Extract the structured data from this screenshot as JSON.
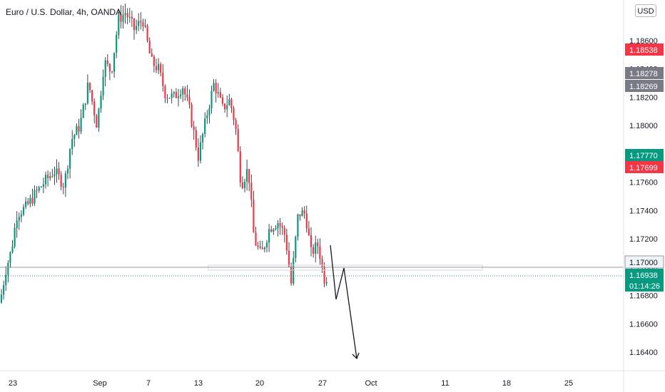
{
  "chart_data": {
    "type": "candlestick",
    "title": "Euro / U.S. Dollar, 4h, OANDA",
    "currency_button": "USD",
    "y_ticks": [
      "1.18600",
      "1.18400",
      "1.18200",
      "1.18000",
      "1.17800",
      "1.17600",
      "1.17400",
      "1.17200",
      "1.17000",
      "1.16800",
      "1.16600",
      "1.16400"
    ],
    "y_tick_values": [
      1.186,
      1.184,
      1.182,
      1.18,
      1.178,
      1.176,
      1.174,
      1.172,
      1.17,
      1.168,
      1.166,
      1.164
    ],
    "x_ticks": [
      "23",
      "Sep",
      "7",
      "13",
      "20",
      "27",
      "Oct",
      "11",
      "18",
      "25"
    ],
    "price_tags": [
      {
        "label": "1.18538",
        "color": "#f23645"
      },
      {
        "label": "1.18278",
        "color": "#787b86"
      },
      {
        "label": "1.18269",
        "color": "#787b86"
      },
      {
        "label": "1.17770",
        "color": "#089981"
      },
      {
        "label": "1.17699",
        "color": "#f23645"
      },
      {
        "label": "1.17000",
        "color": "#f0f3fa"
      },
      {
        "label": "1.16938",
        "color": "#089981"
      },
      {
        "label": "01:14:26",
        "color": "#089981"
      }
    ],
    "current_price": 1.16938,
    "countdown": "01:14:26",
    "support_level": 1.17,
    "colors": {
      "up": "#089981",
      "down": "#f23645",
      "line": "#131722"
    }
  }
}
